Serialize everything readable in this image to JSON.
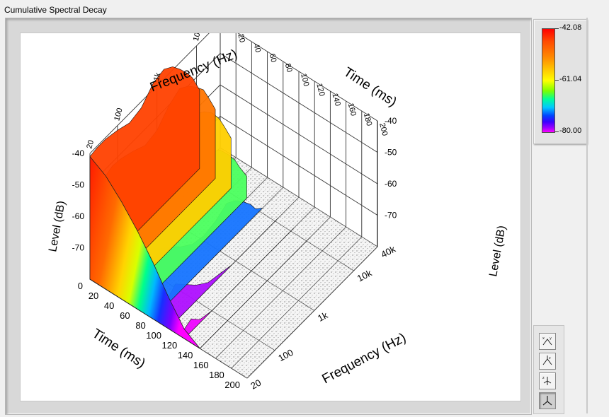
{
  "window": {
    "title": "Cumulative Spectral Decay"
  },
  "color_scale": {
    "labels": [
      "-42.08",
      "-61.04",
      "-80.00"
    ]
  },
  "toolbar": {
    "buttons": [
      {
        "name": "xy-plane-view-button",
        "label": "XY"
      },
      {
        "name": "xz-plane-view-button",
        "label": "XZ"
      },
      {
        "name": "yz-plane-view-button",
        "label": "YZ"
      },
      {
        "name": "3d-view-button",
        "label": "3D"
      }
    ]
  },
  "chart_data": {
    "type": "waterfall-3d",
    "title": "",
    "axes": {
      "frequency": {
        "label": "Frequency (Hz)",
        "scale": "log",
        "range": [
          20,
          40000
        ],
        "ticks": [
          "20",
          "100",
          "1k",
          "10k",
          "40k"
        ]
      },
      "time": {
        "label": "Time (ms)",
        "range": [
          0,
          200
        ],
        "ticks_front": [
          "0",
          "20",
          "40",
          "60",
          "80",
          "100",
          "120",
          "140",
          "160",
          "180",
          "200"
        ],
        "ticks_top": [
          "20",
          "40",
          "60",
          "80",
          "100",
          "120",
          "140",
          "160",
          "180",
          "200"
        ]
      },
      "level": {
        "label": "Level (dB)",
        "range": [
          -80,
          -40
        ],
        "ticks": [
          "-40",
          "-50",
          "-60",
          "-70"
        ]
      }
    },
    "colormap": {
      "max": -42.08,
      "mid": -61.04,
      "min": -80.0,
      "colors": [
        "#ff0000",
        "#ffff00",
        "#00ff9a",
        "#0044ff",
        "#ff00ff"
      ]
    },
    "series": [
      {
        "time_ms": 0,
        "frequency_hz": [
          20,
          30,
          50,
          100,
          200,
          400,
          800,
          1500,
          2500,
          4000,
          6000,
          8000,
          12000
        ],
        "level_db": [
          -41,
          -40.5,
          -40.5,
          -41.5,
          -43,
          -42,
          -38,
          -37,
          -39,
          -42.5,
          -46,
          -49,
          -55
        ]
      },
      {
        "time_ms": 20,
        "frequency_hz": [
          20,
          30,
          50,
          100,
          200,
          400,
          800,
          1500,
          2500,
          4000,
          6000,
          8000,
          12000
        ],
        "level_db": [
          -44,
          -43,
          -43.5,
          -45,
          -47,
          -46,
          -42,
          -40,
          -42,
          -45,
          -48,
          -52,
          -58
        ]
      },
      {
        "time_ms": 40,
        "frequency_hz": [
          20,
          30,
          50,
          100,
          200,
          400,
          800,
          1500,
          2500,
          4000,
          6000,
          8000,
          12000
        ],
        "level_db": [
          -49,
          -47,
          -48,
          -50,
          -52,
          -51,
          -48,
          -45,
          -47,
          -50,
          -54,
          -58,
          -64
        ]
      },
      {
        "time_ms": 60,
        "frequency_hz": [
          20,
          30,
          50,
          100,
          200,
          400,
          800,
          1500,
          2500,
          4000,
          6000,
          8000,
          12000
        ],
        "level_db": [
          -55,
          -53,
          -54,
          -57,
          -60,
          -59,
          -57,
          -54,
          -56,
          -60,
          -64,
          -68,
          -73
        ]
      },
      {
        "time_ms": 80,
        "frequency_hz": [
          20,
          30,
          50,
          100,
          200,
          400,
          800,
          1500,
          2500,
          4000,
          6000,
          8000,
          12000
        ],
        "level_db": [
          -62,
          -60,
          -62,
          -66,
          -69,
          -70,
          -69,
          -67,
          -69,
          -72,
          -75,
          -78,
          -80
        ]
      },
      {
        "time_ms": 100,
        "frequency_hz": [
          20,
          30,
          50,
          100,
          200,
          400,
          800,
          1500,
          2500,
          4000,
          6000,
          8000,
          12000
        ],
        "level_db": [
          -70,
          -68,
          -71,
          -75,
          -78,
          -79,
          -80,
          -80,
          -80,
          -80,
          -80,
          -80,
          -80
        ]
      },
      {
        "time_ms": 120,
        "frequency_hz": [
          20,
          30,
          50,
          100,
          200,
          400,
          800,
          1500,
          2500,
          4000,
          6000,
          8000,
          12000
        ],
        "level_db": [
          -77,
          -76,
          -79,
          -80,
          -80,
          -80,
          -80,
          -80,
          -80,
          -80,
          -80,
          -80,
          -80
        ]
      },
      {
        "time_ms": 140,
        "frequency_hz": [
          20,
          30,
          50,
          100,
          200,
          400,
          800,
          1500,
          2500,
          4000,
          6000,
          8000,
          12000
        ],
        "level_db": [
          -80,
          -80,
          -80,
          -80,
          -80,
          -80,
          -80,
          -80,
          -80,
          -80,
          -80,
          -80,
          -80
        ]
      }
    ]
  }
}
